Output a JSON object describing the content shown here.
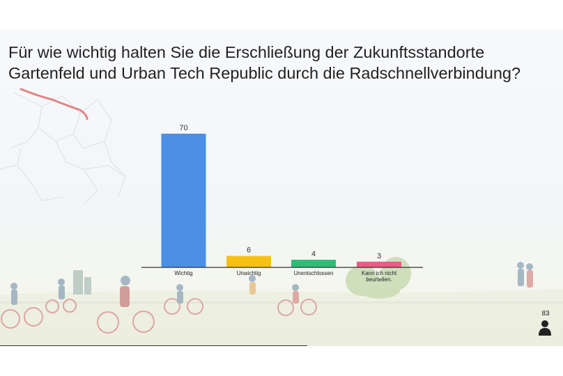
{
  "question": "Für wie wichtig halten Sie die Erschließung der Zukunftsstandorte Gartenfeld und Urban Tech Republic durch die Radschnellverbindung?",
  "respondents": "83",
  "colors": {
    "background": "#f4f6f8",
    "axis": "#333333",
    "map_lines": "#dde3ea",
    "route": "#e0706f"
  },
  "icons": {
    "respondents": "person-icon"
  },
  "chart_data": {
    "type": "bar",
    "categories": [
      "Wichtig",
      "Unwichtig",
      "Unentschlossen",
      "Kann ich nicht beurteilen."
    ],
    "values": [
      70,
      6,
      4,
      3
    ],
    "colors": [
      "#4b8fe6",
      "#f5c113",
      "#2dbd77",
      "#ee5a86"
    ],
    "ylim": [
      0,
      70
    ],
    "grid": false,
    "legend": "none"
  }
}
